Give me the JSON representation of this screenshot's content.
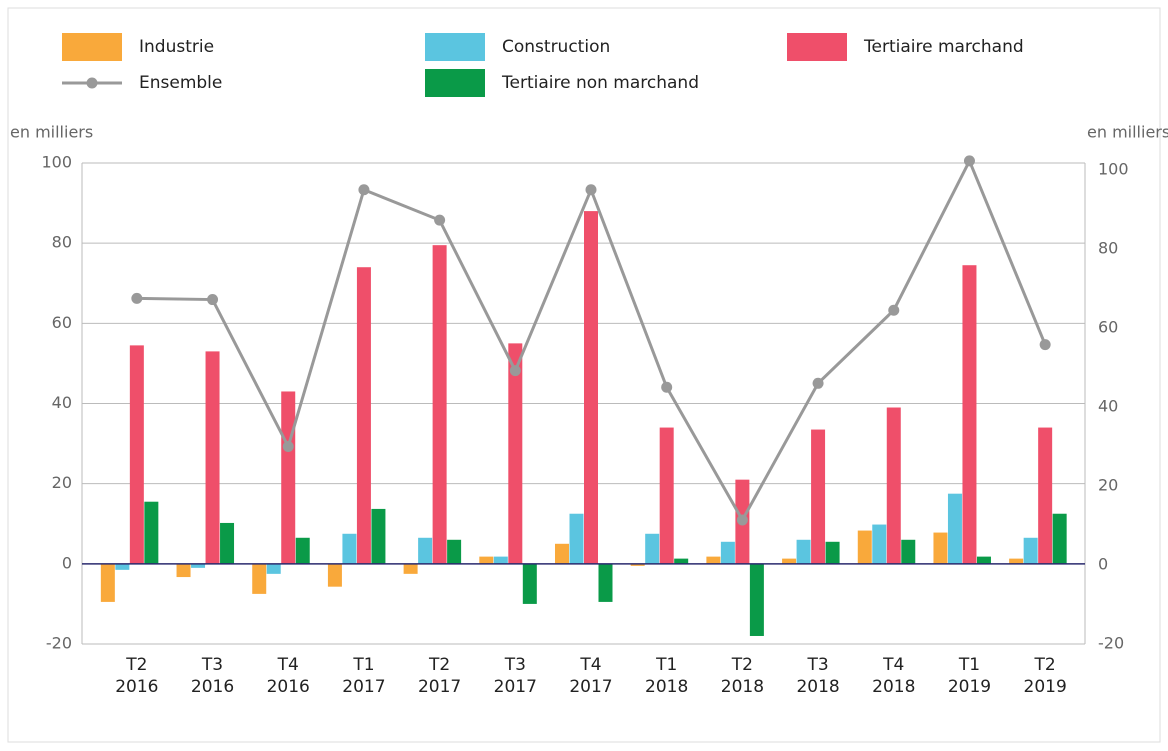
{
  "chart_data": {
    "type": "bar",
    "categories": [
      "T2 2016",
      "T3 2016",
      "T4 2016",
      "T1 2017",
      "T2 2017",
      "T3 2017",
      "T4 2017",
      "T1 2018",
      "T2 2018",
      "T3 2018",
      "T4 2018",
      "T1 2019",
      "T2 2019"
    ],
    "y_label": "en milliers",
    "y2_label": "en milliers",
    "ylim": [
      -20,
      100
    ],
    "yticks": [
      -20,
      0,
      20,
      40,
      60,
      80,
      100
    ],
    "y2lim": [
      -20,
      100
    ],
    "y2ticks": [
      -20,
      0,
      20,
      40,
      60,
      80,
      100
    ],
    "grid": true,
    "series": [
      {
        "name": "Industrie",
        "color": "#f9a93b",
        "values": [
          -9.5,
          -3.3,
          -7.5,
          -5.7,
          -2.5,
          1.8,
          5.0,
          -0.5,
          1.8,
          1.3,
          8.3,
          7.8,
          1.3
        ]
      },
      {
        "name": "Construction",
        "color": "#5bc5e0",
        "values": [
          -1.5,
          -1.0,
          -2.5,
          7.5,
          6.5,
          1.8,
          12.5,
          7.5,
          5.5,
          6.0,
          9.8,
          17.5,
          6.5
        ]
      },
      {
        "name": "Tertiaire marchand",
        "color": "#ef4f6a",
        "values": [
          54.5,
          53,
          43,
          74,
          79.5,
          55,
          88,
          34,
          21,
          33.5,
          39,
          74.5,
          34
        ]
      },
      {
        "name": "Ensemble",
        "color": "#999999",
        "type": "line",
        "axis": "y2",
        "values": [
          67.5,
          67.2,
          30,
          95,
          87.3,
          49.2,
          95,
          45,
          11.4,
          46,
          64.5,
          102.3,
          55.8
        ]
      },
      {
        "name": "Tertiaire non marchand",
        "color": "#0a9a48",
        "values": [
          15.5,
          10.2,
          6.5,
          13.7,
          6,
          -10,
          -9.5,
          1.3,
          -18,
          5.5,
          6,
          1.8,
          12.5
        ]
      }
    ]
  }
}
